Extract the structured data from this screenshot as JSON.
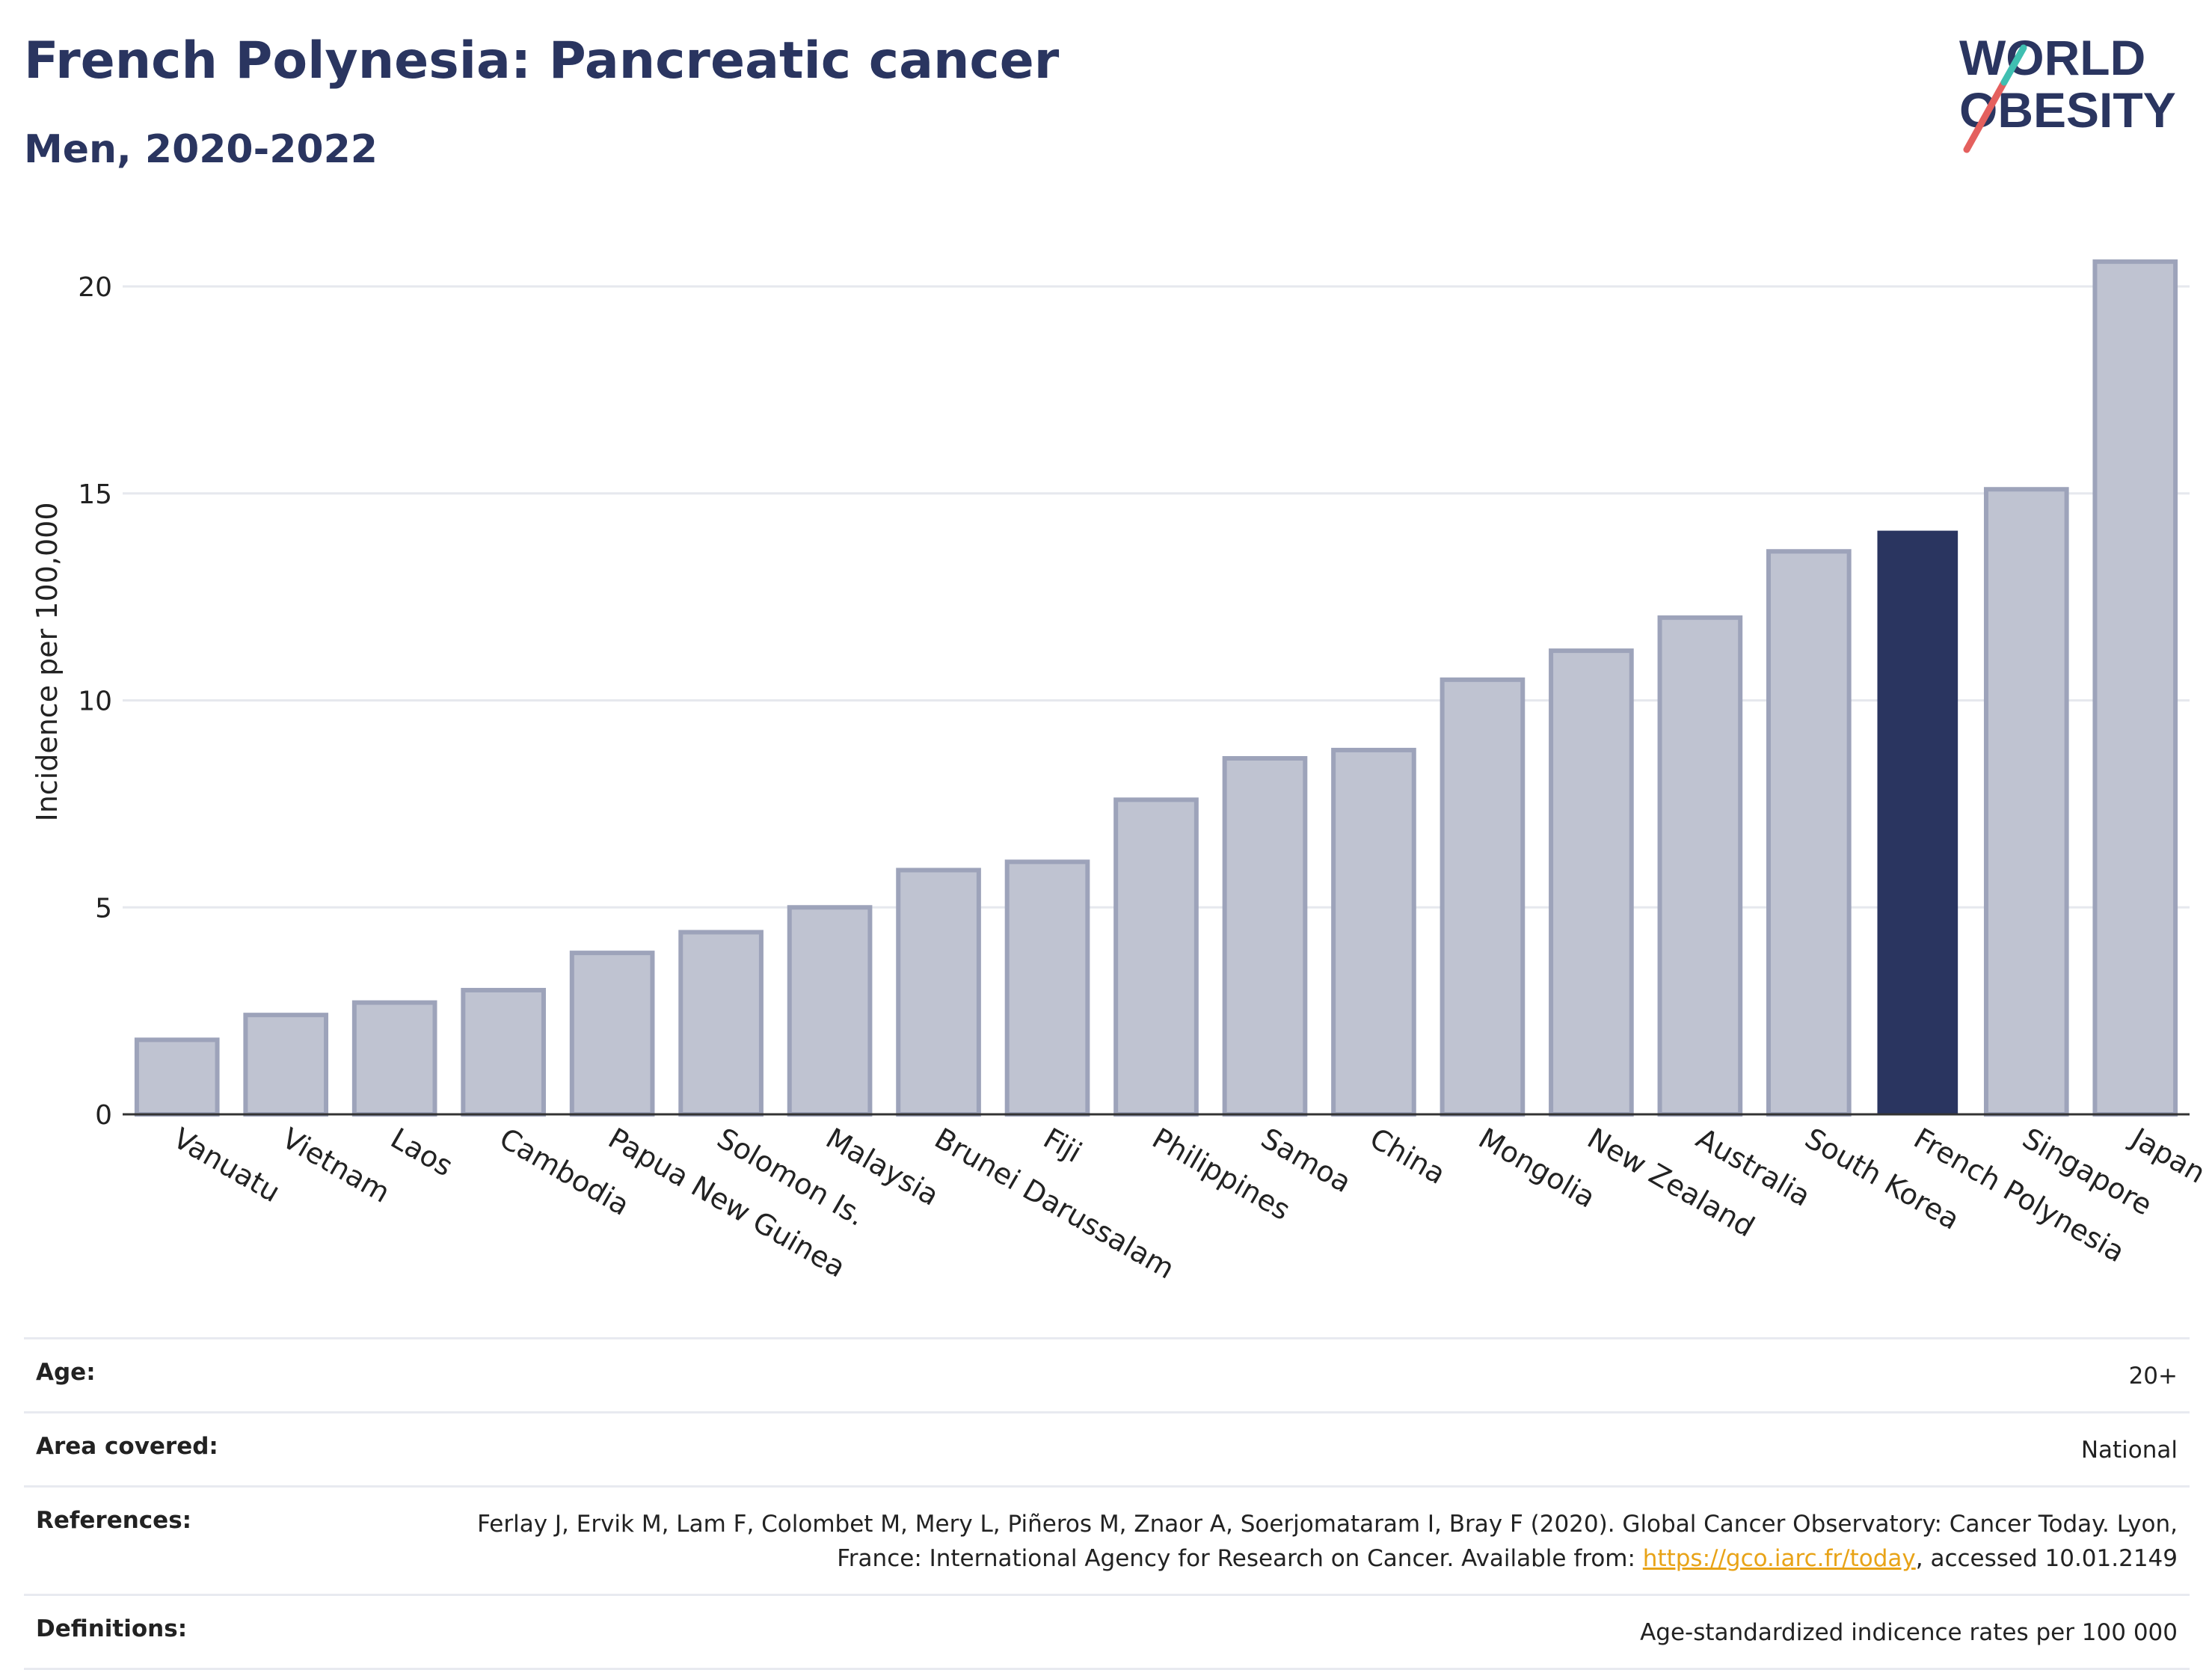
{
  "header": {
    "title": "French Polynesia: Pancreatic cancer",
    "subtitle": "Men, 2020-2022"
  },
  "logo": {
    "line1": "WORLD",
    "line2": "OBESITY",
    "text_color": "#2a3560",
    "slash_colors": [
      "#e4605e",
      "#3fbfb1"
    ]
  },
  "chart_data": {
    "type": "bar",
    "ylabel": "Incidence per 100,000",
    "ylim": [
      0,
      21.5
    ],
    "yticks": [
      0,
      5,
      10,
      15,
      20
    ],
    "grid": true,
    "categories": [
      "Vanuatu",
      "Vietnam",
      "Laos",
      "Cambodia",
      "Papua New Guinea",
      "Solomon Is.",
      "Malaysia",
      "Brunei Darussalam",
      "Fiji",
      "Philippines",
      "Samoa",
      "China",
      "Mongolia",
      "New Zealand",
      "Australia",
      "South Korea",
      "French Polynesia",
      "Singapore",
      "Japan"
    ],
    "values": [
      1.8,
      2.4,
      2.7,
      3.0,
      3.9,
      4.4,
      5.0,
      5.9,
      6.1,
      7.6,
      8.6,
      8.8,
      10.5,
      11.2,
      12.0,
      13.6,
      14.1,
      15.1,
      20.6
    ],
    "highlight": "French Polynesia",
    "colors": {
      "default_fill": "#bfc3d1",
      "default_stroke": "#9da3ba",
      "highlight": "#2a3560"
    }
  },
  "meta": {
    "age_label": "Age:",
    "age_value": "20+",
    "area_label": "Area covered:",
    "area_value": "National",
    "references_label": "References:",
    "references_text": "Ferlay J, Ervik M, Lam F, Colombet M, Mery L, Piñeros M, Znaor A, Soerjomataram I, Bray F (2020). Global Cancer Observatory: Cancer Today. Lyon, France: International Agency for Research on Cancer. Available from: ",
    "references_link": "https://gco.iarc.fr/today",
    "references_suffix": ", accessed 10.01.2149",
    "definitions_label": "Definitions:",
    "definitions_value": "Age-standardized indicence rates per 100 000"
  }
}
